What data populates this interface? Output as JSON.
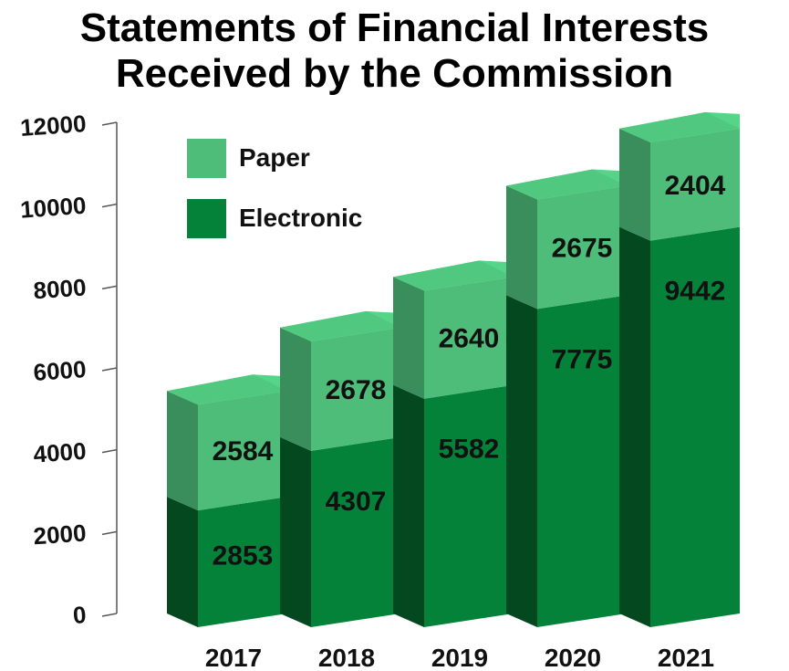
{
  "chart_data": {
    "type": "bar",
    "stacked": true,
    "title_lines": [
      "Statements of Financial Interests",
      "Received by the Commission"
    ],
    "categories": [
      "2017",
      "2018",
      "2019",
      "2020",
      "2021"
    ],
    "series": [
      {
        "name": "Electronic",
        "values": [
          2853,
          4307,
          5582,
          7775,
          9442
        ],
        "color": "#058239"
      },
      {
        "name": "Paper",
        "values": [
          2584,
          2678,
          2640,
          2675,
          2404
        ],
        "color": "#4dbd79"
      }
    ],
    "y_ticks": [
      "0",
      "2000",
      "4000",
      "6000",
      "8000",
      "10000",
      "12000"
    ],
    "ylim": [
      0,
      12000
    ],
    "legend_position": "top-left",
    "style": "3d-column"
  }
}
